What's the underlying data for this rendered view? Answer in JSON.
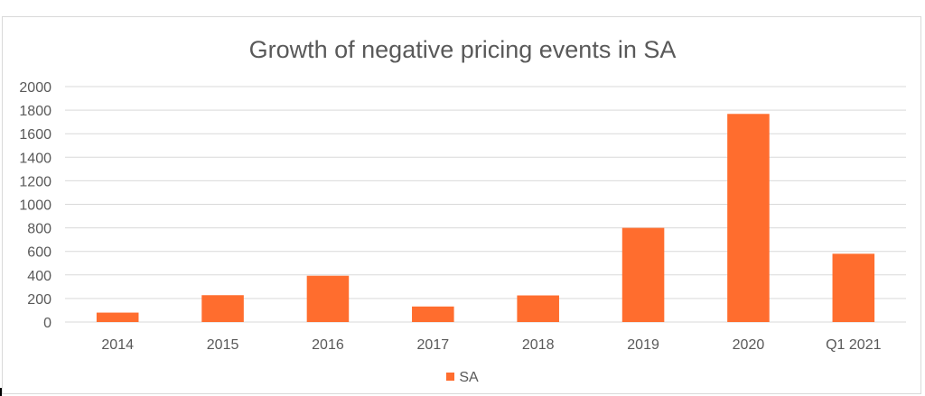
{
  "chart_data": {
    "type": "bar",
    "title": "Growth of negative pricing events in SA",
    "categories": [
      "2014",
      "2015",
      "2016",
      "2017",
      "2018",
      "2019",
      "2020",
      "Q1 2021"
    ],
    "series": [
      {
        "name": "SA",
        "color": "#ff6d2e",
        "values": [
          80,
          228,
          393,
          132,
          226,
          800,
          1768,
          580
        ]
      }
    ],
    "ylim": [
      0,
      2000
    ],
    "yticks": [
      0,
      200,
      400,
      600,
      800,
      1000,
      1200,
      1400,
      1600,
      1800,
      2000
    ],
    "grid": true,
    "legend_position": "bottom",
    "gridline_color": "#d9d9d9",
    "text_color": "#595959"
  }
}
